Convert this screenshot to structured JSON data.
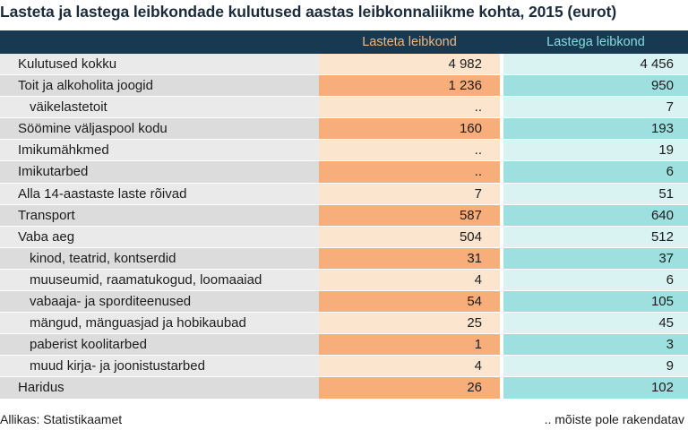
{
  "chart_data": {
    "type": "table",
    "title": "Lasteta ja lastega leibkondade kulutused aastas leibkonnaliikme kohta, 2015 (eurot)",
    "columns": [
      "Lasteta leibkond",
      "Lastega leibkond"
    ],
    "rows": [
      {
        "label": "Kulutused kokku",
        "sub": false,
        "values": [
          "4 982",
          "4 456"
        ]
      },
      {
        "label": "Toit ja alkoholita joogid",
        "sub": false,
        "values": [
          "1 236",
          "950"
        ]
      },
      {
        "label": "väikelastetoit",
        "sub": true,
        "values": [
          "..",
          "7"
        ]
      },
      {
        "label": "Söömine väljaspool kodu",
        "sub": false,
        "values": [
          "160",
          "193"
        ]
      },
      {
        "label": "Imikumähkmed",
        "sub": false,
        "values": [
          "..",
          "19"
        ]
      },
      {
        "label": "Imikutarbed",
        "sub": false,
        "values": [
          "..",
          "6"
        ]
      },
      {
        "label": "Alla 14-aastaste laste rõivad",
        "sub": false,
        "values": [
          "7",
          "51"
        ]
      },
      {
        "label": "Transport",
        "sub": false,
        "values": [
          "587",
          "640"
        ]
      },
      {
        "label": "Vaba aeg",
        "sub": false,
        "values": [
          "504",
          "512"
        ]
      },
      {
        "label": "kinod, teatrid, kontserdid",
        "sub": true,
        "values": [
          "31",
          "37"
        ]
      },
      {
        "label": "muuseumid, raamatukogud, loomaaiad",
        "sub": true,
        "values": [
          "4",
          "6"
        ]
      },
      {
        "label": "vabaaja- ja sporditeenused",
        "sub": true,
        "values": [
          "54",
          "105"
        ]
      },
      {
        "label": "mängud, mänguasjad ja hobikaubad",
        "sub": true,
        "values": [
          "25",
          "45"
        ]
      },
      {
        "label": "paberist koolitarbed",
        "sub": true,
        "values": [
          "1",
          "3"
        ]
      },
      {
        "label": "muud kirja- ja joonistustarbed",
        "sub": true,
        "values": [
          "4",
          "9"
        ]
      },
      {
        "label": "Haridus",
        "sub": false,
        "values": [
          "26",
          "102"
        ]
      }
    ],
    "source": "Allikas: Statistikaamet",
    "note": "..   mõiste pole rakendatav"
  },
  "colors": {
    "header_bg": "#173a52",
    "col1_header": "#f4b57a",
    "col2_header": "#86dcdc",
    "col1_dark": "#f7ae7a",
    "col1_light": "#fce5cf",
    "col2_dark": "#9ee0e0",
    "col2_light": "#d9f2f2"
  }
}
